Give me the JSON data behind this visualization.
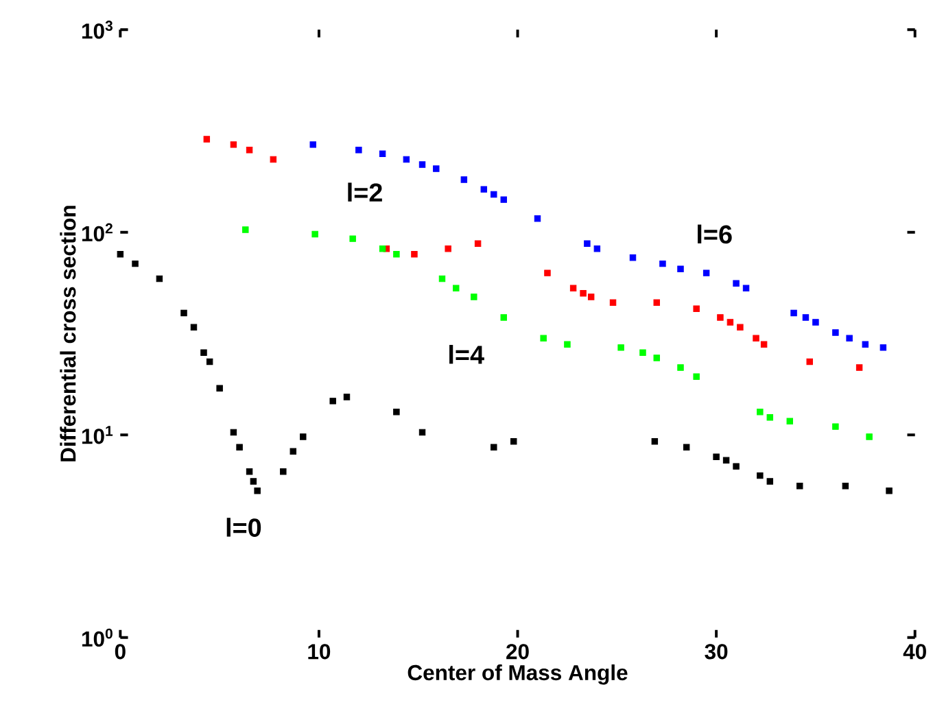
{
  "chart_data": {
    "type": "scatter",
    "xlabel": "Center of Mass Angle",
    "ylabel": "Differential cross section",
    "log": "y",
    "marker": "square",
    "grid": false,
    "xlim": [
      0,
      40
    ],
    "ylim": [
      1,
      1000
    ],
    "xticks": [
      0,
      10,
      20,
      30,
      40
    ],
    "yticks": [
      {
        "value": 1,
        "label": "10$^{0}$"
      },
      {
        "value": 10,
        "label": "10$^{1}$"
      },
      {
        "value": 100,
        "label": "10$^{2}$"
      },
      {
        "value": 1000,
        "label": "10$^{3}$"
      }
    ],
    "series": [
      {
        "color": "#000000",
        "x": [
          0,
          0.75,
          1.97,
          3.2,
          3.7,
          4.2,
          4.5,
          5.0,
          5.7,
          6.0,
          6.5,
          6.7,
          6.9,
          8.2,
          8.7,
          9.2,
          10.7,
          11.4,
          13.9,
          15.2,
          18.8,
          19.8,
          26.9,
          28.5,
          30.0,
          30.5,
          31.0,
          32.2,
          32.7,
          34.2,
          36.5,
          38.7
        ],
        "values": [
          78,
          70,
          59,
          40,
          34,
          25.5,
          23,
          17,
          10.3,
          8.7,
          6.6,
          5.9,
          5.3,
          6.6,
          8.3,
          9.8,
          14.7,
          15.4,
          13,
          10.3,
          8.7,
          9.3,
          9.3,
          8.7,
          7.8,
          7.5,
          7.0,
          6.3,
          5.9,
          5.6,
          5.6,
          5.3
        ]
      },
      {
        "color": "#ff0000",
        "x": [
          4.35,
          5.7,
          6.5,
          7.7,
          13.4,
          14.8,
          16.5,
          18.0,
          21.5,
          22.8,
          23.3,
          23.7,
          24.8,
          27.0,
          29.0,
          30.2,
          30.7,
          31.2,
          32.0,
          32.4,
          34.7,
          37.2
        ],
        "values": [
          288,
          271,
          255,
          229,
          83,
          78,
          83,
          88,
          63,
          53,
          50,
          48,
          45,
          45,
          42,
          38,
          36,
          34,
          30,
          28,
          23,
          21.5
        ]
      },
      {
        "color": "#00ff00",
        "x": [
          6.3,
          9.8,
          11.7,
          13.2,
          13.9,
          16.2,
          16.9,
          17.8,
          19.3,
          21.3,
          22.5,
          25.2,
          26.3,
          27.0,
          28.2,
          29.0,
          32.2,
          32.7,
          33.7,
          36.0,
          37.7
        ],
        "values": [
          103,
          98,
          93,
          83,
          78,
          59,
          53,
          48,
          38,
          30,
          28,
          27,
          25.5,
          24,
          21.5,
          19.4,
          13,
          12.2,
          11.7,
          11,
          9.8
        ]
      },
      {
        "color": "#0000ff",
        "x": [
          9.7,
          12.0,
          13.2,
          14.4,
          15.2,
          15.9,
          17.3,
          18.3,
          18.8,
          19.3,
          21.0,
          23.5,
          24.0,
          25.8,
          27.3,
          28.2,
          29.5,
          31.0,
          31.5,
          33.9,
          34.5,
          35.0,
          36.0,
          36.7,
          37.5,
          38.4
        ],
        "values": [
          271,
          255,
          244,
          229,
          216,
          206,
          182,
          163,
          154,
          145,
          117,
          88,
          83,
          75,
          70,
          66,
          63,
          56,
          53,
          40,
          38,
          36,
          32,
          30,
          28,
          27
        ]
      }
    ],
    "annotations": [
      "l=0",
      "l=2",
      "l=4",
      "l=6"
    ]
  }
}
